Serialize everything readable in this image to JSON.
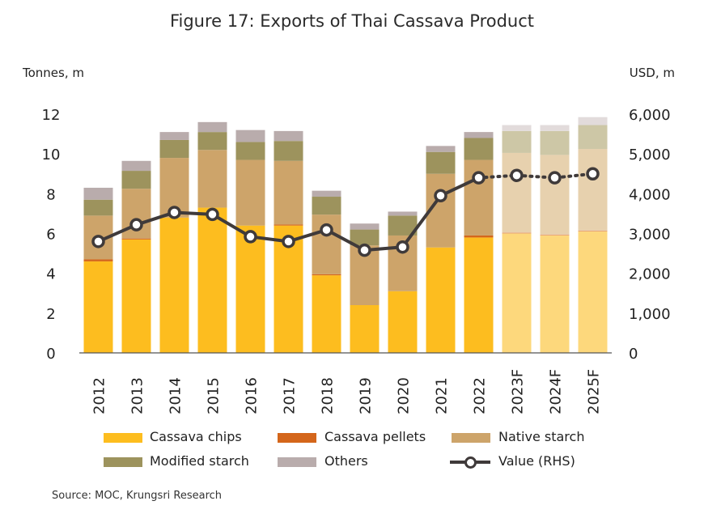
{
  "title": "Figure 17: Exports of Thai Cassava Product",
  "source": "Source: MOC, Krungsri Research",
  "chart_data": {
    "type": "bar",
    "stacked": true,
    "categories": [
      "2012",
      "2013",
      "2014",
      "2015",
      "2016",
      "2017",
      "2018",
      "2019",
      "2020",
      "2021",
      "2022",
      "2023F",
      "2024F",
      "2025F"
    ],
    "forecast_categories": [
      "2023F",
      "2024F",
      "2025F"
    ],
    "left_axis": {
      "label": "Tonnes, m",
      "ticks": [
        "0",
        "2",
        "4",
        "6",
        "8",
        "10",
        "12"
      ],
      "ylim": [
        0,
        12
      ]
    },
    "right_axis": {
      "label": "USD, m",
      "ticks": [
        "0",
        "1,000",
        "2,000",
        "3,000",
        "4,000",
        "5,000",
        "6,000"
      ],
      "ylim": [
        0,
        6000
      ]
    },
    "series": [
      {
        "name": "Cassava chips",
        "color": "#FDBD1F",
        "forecast_color": "#FDD87C",
        "values": [
          4.6,
          5.7,
          6.8,
          7.3,
          6.4,
          6.4,
          3.9,
          2.4,
          3.1,
          5.3,
          5.8,
          6.0,
          5.9,
          6.1
        ]
      },
      {
        "name": "Cassava pellets",
        "color": "#D4661B",
        "forecast_color": "#E7A577",
        "values": [
          0.1,
          0.05,
          0.0,
          0.0,
          0.0,
          0.05,
          0.05,
          0.0,
          0.0,
          0.0,
          0.1,
          0.05,
          0.05,
          0.05
        ]
      },
      {
        "name": "Native starch",
        "color": "#CDA46A",
        "forecast_color": "#E7D1AE",
        "values": [
          2.2,
          2.5,
          3.0,
          2.9,
          3.3,
          3.2,
          3.0,
          3.0,
          2.8,
          3.7,
          3.8,
          4.0,
          4.0,
          4.1
        ]
      },
      {
        "name": "Modified starch",
        "color": "#9D935D",
        "forecast_color": "#CDC7A6",
        "values": [
          0.8,
          0.9,
          0.9,
          0.9,
          0.9,
          1.0,
          0.9,
          0.8,
          1.0,
          1.1,
          1.1,
          1.1,
          1.2,
          1.2
        ]
      },
      {
        "name": "Others",
        "color": "#B9ACAC",
        "forecast_color": "#E2DBDB",
        "values": [
          0.6,
          0.5,
          0.4,
          0.5,
          0.6,
          0.5,
          0.3,
          0.3,
          0.2,
          0.3,
          0.3,
          0.3,
          0.3,
          0.4
        ]
      }
    ],
    "line_series": {
      "name": "Value (RHS)",
      "color": "#3F3A3A",
      "axis": "right",
      "values": [
        2800,
        3220,
        3530,
        3480,
        2920,
        2800,
        3090,
        2580,
        2660,
        3950,
        4400,
        4460,
        4400,
        4500
      ],
      "forecast_style": "dotted"
    },
    "legend_position": "bottom",
    "grid": false
  }
}
